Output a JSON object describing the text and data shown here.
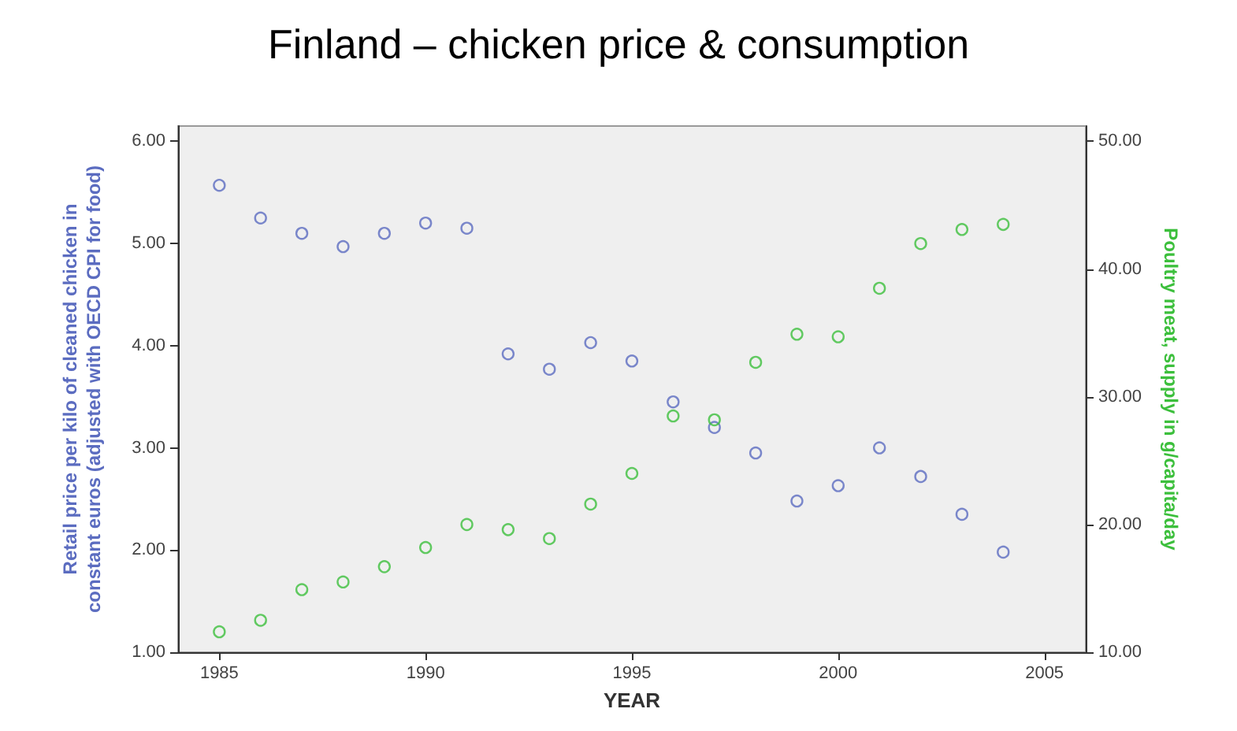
{
  "chart_data": {
    "type": "scatter",
    "title": "Finland – chicken price & consumption",
    "xlabel": "YEAR",
    "ylabel": "Retail price per kilo of cleaned chicken in constant euros (adjusted with OECD CPI for food)",
    "y2label": "Poultry meat, supply in g/capita/day",
    "x": [
      1985,
      1986,
      1987,
      1988,
      1989,
      1990,
      1991,
      1992,
      1993,
      1994,
      1995,
      1996,
      1997,
      1998,
      1999,
      2000,
      2001,
      2002,
      2003,
      2004
    ],
    "series": [
      {
        "color": "#5b6cc0",
        "values": [
          5.57,
          5.25,
          5.1,
          4.97,
          5.1,
          5.2,
          5.15,
          3.92,
          3.77,
          4.03,
          3.85,
          3.45,
          3.2,
          2.95,
          2.48,
          2.63,
          3.0,
          2.72,
          2.35,
          1.98
        ]
      },
      {
        "color": "#3cbf3c",
        "axis": "y2",
        "values": [
          11.6,
          12.5,
          14.9,
          15.5,
          16.7,
          18.2,
          20.0,
          19.6,
          18.9,
          21.6,
          24.0,
          28.5,
          28.2,
          32.7,
          34.9,
          34.7,
          38.5,
          42.0,
          43.1,
          43.5
        ]
      }
    ],
    "xlim": [
      1984,
      2006
    ],
    "xticks": [
      1985,
      1990,
      1995,
      2000,
      2005
    ],
    "ylim": [
      1,
      6.15
    ],
    "yticks": [
      {
        "value": 1,
        "label": "1.00"
      },
      {
        "value": 2,
        "label": "2.00"
      },
      {
        "value": 3,
        "label": "3.00"
      },
      {
        "value": 4,
        "label": "4.00"
      },
      {
        "value": 5,
        "label": "5.00"
      },
      {
        "value": 6,
        "label": "6.00"
      }
    ],
    "y2lim": [
      10,
      51.2
    ],
    "y2ticks": [
      {
        "value": 10,
        "label": "10.00"
      },
      {
        "value": 20,
        "label": "20.00"
      },
      {
        "value": 30,
        "label": "30.00"
      },
      {
        "value": 40,
        "label": "40.00"
      },
      {
        "value": 50,
        "label": "50.00"
      }
    ],
    "marker": "circle",
    "grid": false
  }
}
